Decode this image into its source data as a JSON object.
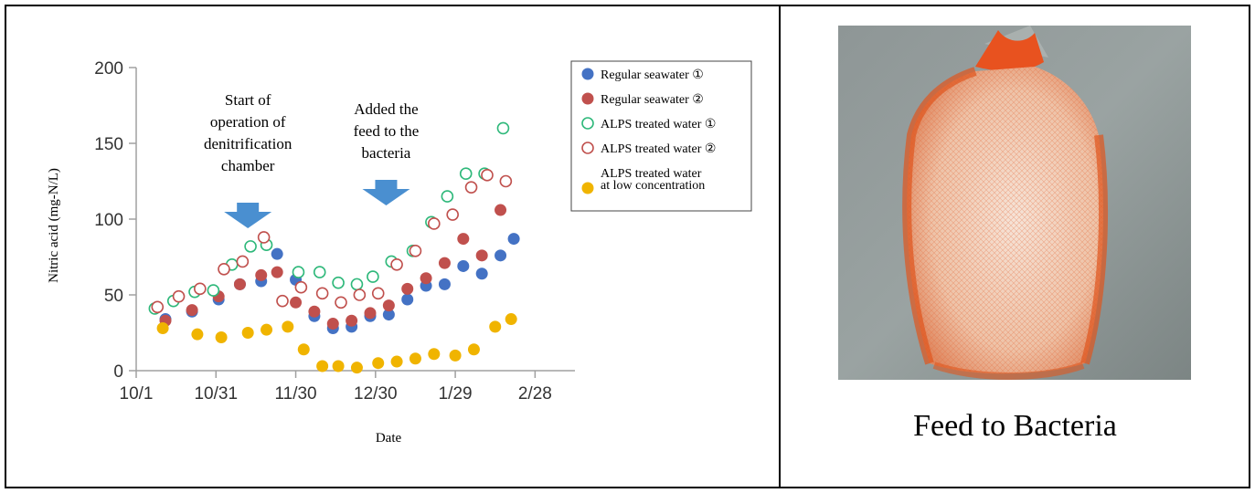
{
  "chart_data": {
    "type": "scatter",
    "xlabel": "Date",
    "ylabel": "Nitric acid (mg-N/L)",
    "x_ticks": [
      "10/1",
      "10/31",
      "11/30",
      "12/30",
      "1/29",
      "2/28"
    ],
    "x_tick_days": [
      0,
      30,
      60,
      90,
      120,
      150
    ],
    "y_ticks": [
      "0",
      "50",
      "100",
      "150",
      "200"
    ],
    "xlim": [
      "10/1",
      "3/15"
    ],
    "ylim": [
      0,
      200
    ],
    "grid": false,
    "legend_position": "top-right",
    "annotations": [
      {
        "text": "Start of operation of denitrification chamber",
        "lines": [
          "Start of",
          "operation of",
          "denitrification",
          "chamber"
        ],
        "x": "11/12"
      },
      {
        "text": "Added the feed to the bacteria",
        "lines": [
          "Added the",
          "feed to the",
          "bacteria"
        ],
        "x": "1/3"
      }
    ],
    "series": [
      {
        "name": "Regular seawater ①",
        "color": "#4472c4",
        "marker": "filled",
        "x": [
          "10/12",
          "10/22",
          "11/1",
          "11/9",
          "11/17",
          "11/23",
          "11/30",
          "12/7",
          "12/14",
          "12/21",
          "12/28",
          "1/4",
          "1/11",
          "1/18",
          "1/25",
          "2/1",
          "2/8",
          "2/15",
          "2/20"
        ],
        "y": [
          34,
          39,
          47,
          57,
          59,
          77,
          60,
          36,
          28,
          29,
          36,
          37,
          47,
          56,
          57,
          69,
          64,
          76,
          87
        ]
      },
      {
        "name": "Regular seawater ②",
        "color": "#c0504d",
        "marker": "filled",
        "x": [
          "10/12",
          "10/22",
          "11/1",
          "11/9",
          "11/17",
          "11/23",
          "11/30",
          "12/7",
          "12/14",
          "12/21",
          "12/28",
          "1/4",
          "1/11",
          "1/18",
          "1/25",
          "2/1",
          "2/8",
          "2/15"
        ],
        "y": [
          33,
          40,
          49,
          57,
          63,
          65,
          45,
          39,
          31,
          33,
          38,
          43,
          54,
          61,
          71,
          87,
          76,
          106
        ]
      },
      {
        "name": "ALPS treated water ①",
        "color": "#2eb87a",
        "marker": "open",
        "x": [
          "10/8",
          "10/15",
          "10/23",
          "10/30",
          "11/6",
          "11/13",
          "11/19",
          "12/1",
          "12/9",
          "12/16",
          "12/23",
          "12/29",
          "1/5",
          "1/13",
          "1/20",
          "1/26",
          "2/2",
          "2/9",
          "2/16"
        ],
        "y": [
          41,
          46,
          52,
          53,
          70,
          82,
          83,
          65,
          65,
          58,
          57,
          62,
          72,
          79,
          98,
          115,
          130,
          130,
          160
        ]
      },
      {
        "name": "ALPS treated water ②",
        "color": "#c0504d",
        "marker": "open",
        "x": [
          "10/9",
          "10/17",
          "10/25",
          "11/3",
          "11/10",
          "11/18",
          "11/25",
          "12/2",
          "12/10",
          "12/17",
          "12/24",
          "12/31",
          "1/7",
          "1/14",
          "1/21",
          "1/28",
          "2/4",
          "2/10",
          "2/17"
        ],
        "y": [
          42,
          49,
          54,
          67,
          72,
          88,
          46,
          55,
          51,
          45,
          50,
          51,
          70,
          79,
          97,
          103,
          121,
          129,
          125
        ]
      },
      {
        "name": "ALPS treated water at low concentration",
        "color": "#f0b400",
        "marker": "filled",
        "x": [
          "10/11",
          "10/24",
          "11/2",
          "11/12",
          "11/19",
          "11/27",
          "12/3",
          "12/10",
          "12/16",
          "12/23",
          "12/31",
          "1/7",
          "1/14",
          "1/21",
          "1/29",
          "2/5",
          "2/13",
          "2/19"
        ],
        "y": [
          28,
          24,
          22,
          25,
          27,
          29,
          14,
          3,
          3,
          2,
          5,
          6,
          8,
          11,
          10,
          14,
          29,
          34
        ]
      }
    ]
  },
  "legend_entries": [
    {
      "label": "Regular seawater ①",
      "lines": [
        "Regular seawater ①"
      ]
    },
    {
      "label": "Regular seawater ②",
      "lines": [
        "Regular seawater ②"
      ]
    },
    {
      "label": "ALPS treated water ①",
      "lines": [
        "ALPS treated water ①"
      ]
    },
    {
      "label": "ALPS treated water ②",
      "lines": [
        "ALPS treated water ②"
      ]
    },
    {
      "label": "ALPS treated water at low concentration",
      "lines": [
        "ALPS treated water",
        "at low concentration"
      ]
    }
  ],
  "arrow_color": "#4a8fd0",
  "axis_color": "#a0a0a0",
  "photo_caption": "Feed to Bacteria",
  "photo_subject": "orange-mesh-bag-of-feed"
}
